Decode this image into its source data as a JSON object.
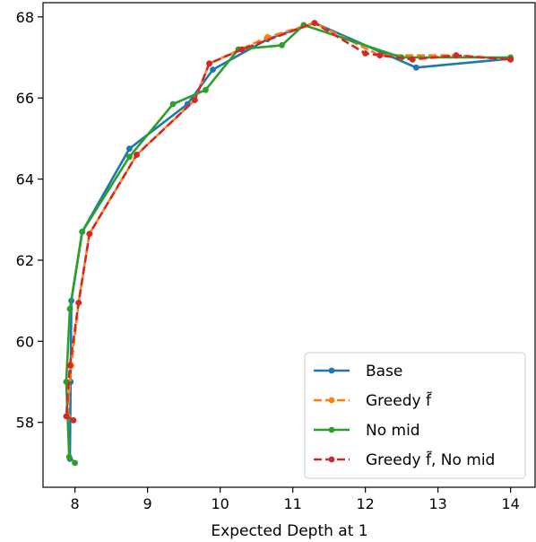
{
  "chart_data": {
    "type": "line",
    "title": "",
    "xlabel": "Expected Depth at 1",
    "ylabel": "",
    "xlim": [
      7.56,
      14.35
    ],
    "ylim": [
      56.4,
      68.35
    ],
    "xticks": [
      8,
      9,
      10,
      11,
      12,
      13,
      14
    ],
    "yticks": [
      58,
      60,
      62,
      64,
      66,
      68
    ],
    "grid": false,
    "legend_position": "lower-right",
    "series": [
      {
        "name": "Base",
        "color": "#1f77b4",
        "dash": "solid",
        "points": [
          [
            7.93,
            57.1
          ],
          [
            7.94,
            59.0
          ],
          [
            7.95,
            61.0
          ],
          [
            8.1,
            62.7
          ],
          [
            8.75,
            64.75
          ],
          [
            9.55,
            65.85
          ],
          [
            9.9,
            66.7
          ],
          [
            10.65,
            67.45
          ],
          [
            11.3,
            67.85
          ],
          [
            12.7,
            66.75
          ],
          [
            14.0,
            66.97
          ]
        ]
      },
      {
        "name": "Greedy f̃",
        "color": "#ff7f0e",
        "dash": "dashed",
        "points": [
          [
            7.9,
            58.15
          ],
          [
            7.95,
            59.4
          ],
          [
            8.05,
            60.95
          ],
          [
            8.2,
            62.65
          ],
          [
            8.85,
            64.6
          ],
          [
            9.65,
            65.95
          ],
          [
            9.85,
            66.85
          ],
          [
            10.65,
            67.5
          ],
          [
            11.3,
            67.85
          ],
          [
            12.2,
            67.05
          ],
          [
            13.25,
            67.05
          ],
          [
            14.0,
            66.95
          ]
        ]
      },
      {
        "name": "No mid",
        "color": "#2ca02c",
        "dash": "solid",
        "points": [
          [
            8.0,
            57.0
          ],
          [
            7.92,
            57.15
          ],
          [
            7.88,
            59.0
          ],
          [
            7.93,
            60.8
          ],
          [
            8.1,
            62.7
          ],
          [
            8.75,
            64.55
          ],
          [
            9.35,
            65.85
          ],
          [
            9.8,
            66.2
          ],
          [
            10.25,
            67.2
          ],
          [
            10.85,
            67.3
          ],
          [
            11.15,
            67.8
          ],
          [
            12.5,
            67.0
          ],
          [
            14.0,
            67.0
          ]
        ]
      },
      {
        "name": "Greedy f̃, No mid",
        "color": "#d62728",
        "dash": "dashed",
        "points": [
          [
            7.98,
            58.05
          ],
          [
            7.88,
            58.15
          ],
          [
            7.93,
            59.4
          ],
          [
            8.05,
            60.95
          ],
          [
            8.2,
            62.65
          ],
          [
            8.85,
            64.6
          ],
          [
            9.65,
            65.95
          ],
          [
            9.85,
            66.85
          ],
          [
            10.3,
            67.2
          ],
          [
            11.3,
            67.85
          ],
          [
            12.0,
            67.1
          ],
          [
            12.2,
            67.05
          ],
          [
            12.65,
            66.95
          ],
          [
            13.25,
            67.05
          ],
          [
            14.0,
            66.95
          ]
        ]
      }
    ]
  }
}
